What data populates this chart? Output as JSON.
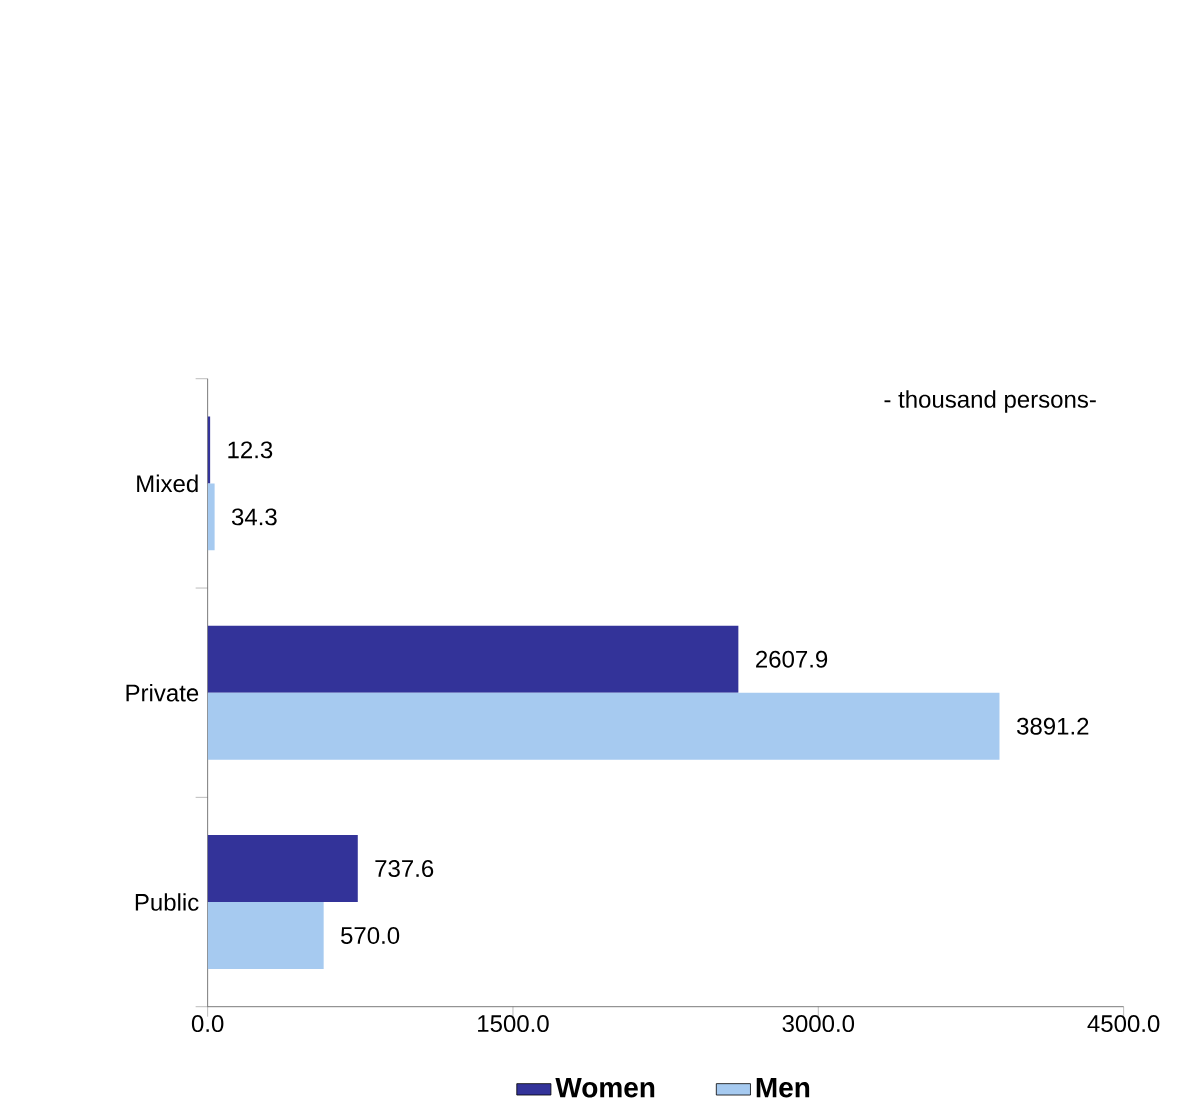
{
  "chart_data": {
    "type": "bar",
    "orientation": "horizontal",
    "categories": [
      "Mixed",
      "Private",
      "Public"
    ],
    "series": [
      {
        "name": "Women",
        "color": "#333399",
        "values": [
          12.3,
          2607.9,
          737.6
        ],
        "value_labels": [
          "12.3",
          "2607.9",
          "737.6"
        ]
      },
      {
        "name": "Men",
        "color": "#a6caf0",
        "values": [
          34.3,
          3891.2,
          570.0
        ],
        "value_labels": [
          "34.3",
          "3891.2",
          "570.0"
        ]
      }
    ],
    "xlim": [
      0,
      4500
    ],
    "xticks": [
      {
        "value": 0,
        "label": "0.0"
      },
      {
        "value": 1500,
        "label": "1500.0"
      },
      {
        "value": 3000,
        "label": "3000.0"
      },
      {
        "value": 4500,
        "label": "4500.0"
      }
    ],
    "legend": "bottom",
    "grid": false,
    "annotations": [
      "- thousand persons-"
    ]
  }
}
